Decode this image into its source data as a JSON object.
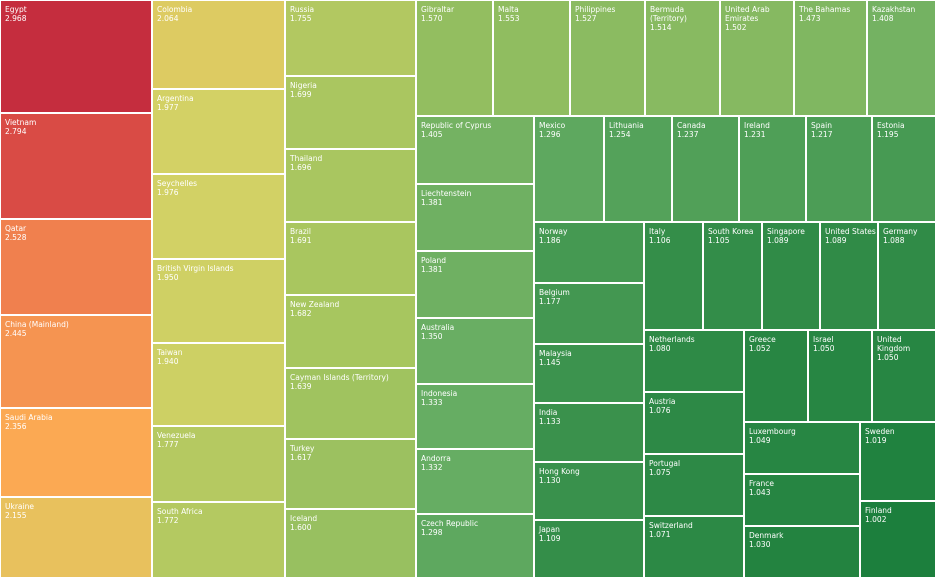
{
  "chart_data": {
    "type": "treemap",
    "color_scale": [
      "#c1283d",
      "#e8604a",
      "#fcae54",
      "#d6d265",
      "#a5c55f",
      "#66ad63",
      "#1c7f3d"
    ],
    "items": [
      {
        "name": "Egypt",
        "value": 2.968
      },
      {
        "name": "Vietnam",
        "value": 2.794
      },
      {
        "name": "Qatar",
        "value": 2.528
      },
      {
        "name": "China (Mainland)",
        "value": 2.445
      },
      {
        "name": "Saudi Arabia",
        "value": 2.356
      },
      {
        "name": "Ukraine",
        "value": 2.155
      },
      {
        "name": "Colombia",
        "value": 2.064
      },
      {
        "name": "Argentina",
        "value": 1.977
      },
      {
        "name": "Seychelles",
        "value": 1.976
      },
      {
        "name": "British Virgin Islands",
        "value": 1.95
      },
      {
        "name": "Taiwan",
        "value": 1.94
      },
      {
        "name": "Venezuela",
        "value": 1.777
      },
      {
        "name": "South Africa",
        "value": 1.772
      },
      {
        "name": "Russia",
        "value": 1.755
      },
      {
        "name": "Nigeria",
        "value": 1.699
      },
      {
        "name": "Thailand",
        "value": 1.696
      },
      {
        "name": "Brazil",
        "value": 1.691
      },
      {
        "name": "New Zealand",
        "value": 1.682
      },
      {
        "name": "Cayman Islands (Territory)",
        "value": 1.639
      },
      {
        "name": "Turkey",
        "value": 1.617
      },
      {
        "name": "Iceland",
        "value": 1.6
      },
      {
        "name": "Gibraltar",
        "value": 1.57
      },
      {
        "name": "Malta",
        "value": 1.553
      },
      {
        "name": "Philippines",
        "value": 1.527
      },
      {
        "name": "Bermuda (Territory)",
        "value": 1.514
      },
      {
        "name": "United Arab Emirates",
        "value": 1.502
      },
      {
        "name": "The Bahamas",
        "value": 1.473
      },
      {
        "name": "Kazakhstan",
        "value": 1.408
      },
      {
        "name": "Republic of Cyprus",
        "value": 1.405
      },
      {
        "name": "Liechtenstein",
        "value": 1.381
      },
      {
        "name": "Poland",
        "value": 1.381
      },
      {
        "name": "Australia",
        "value": 1.35
      },
      {
        "name": "Indonesia",
        "value": 1.333
      },
      {
        "name": "Andorra",
        "value": 1.332
      },
      {
        "name": "Czech Republic",
        "value": 1.298
      },
      {
        "name": "Mexico",
        "value": 1.296
      },
      {
        "name": "Lithuania",
        "value": 1.254
      },
      {
        "name": "Canada",
        "value": 1.237
      },
      {
        "name": "Ireland",
        "value": 1.231
      },
      {
        "name": "Spain",
        "value": 1.217
      },
      {
        "name": "Estonia",
        "value": 1.195
      },
      {
        "name": "Norway",
        "value": 1.186
      },
      {
        "name": "Belgium",
        "value": 1.177
      },
      {
        "name": "Malaysia",
        "value": 1.145
      },
      {
        "name": "India",
        "value": 1.133
      },
      {
        "name": "Hong Kong",
        "value": 1.13
      },
      {
        "name": "Japan",
        "value": 1.109
      },
      {
        "name": "Italy",
        "value": 1.106
      },
      {
        "name": "South Korea",
        "value": 1.105
      },
      {
        "name": "Singapore",
        "value": 1.089
      },
      {
        "name": "United States",
        "value": 1.089
      },
      {
        "name": "Germany",
        "value": 1.088
      },
      {
        "name": "Netherlands",
        "value": 1.08
      },
      {
        "name": "Austria",
        "value": 1.076
      },
      {
        "name": "Portugal",
        "value": 1.075
      },
      {
        "name": "Switzerland",
        "value": 1.071
      },
      {
        "name": "Greece",
        "value": 1.052
      },
      {
        "name": "Israel",
        "value": 1.05
      },
      {
        "name": "United Kingdom",
        "value": 1.05
      },
      {
        "name": "Luxembourg",
        "value": 1.049
      },
      {
        "name": "France",
        "value": 1.043
      },
      {
        "name": "Denmark",
        "value": 1.03
      },
      {
        "name": "Sweden",
        "value": 1.019
      },
      {
        "name": "Finland",
        "value": 1.002
      }
    ]
  }
}
